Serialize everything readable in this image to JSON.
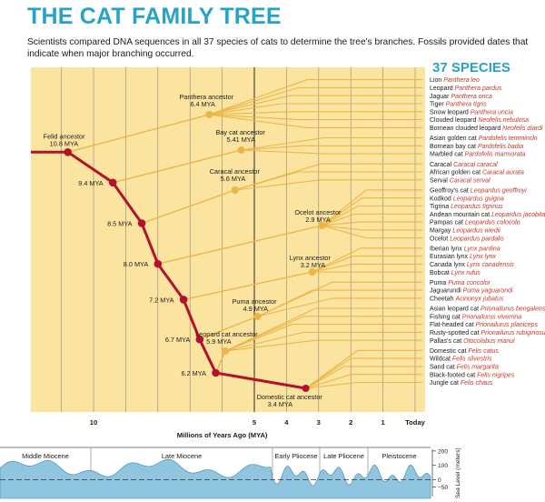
{
  "title": "THE CAT FAMILY TREE",
  "intro": "Scientists compared DNA sequences in all 37 species of cats to determine the tree's branches. Fossils provided dates that indicate when major branching occurred.",
  "species_header": "37 SPECIES",
  "colors": {
    "title": "#27a3c6",
    "panel": "#fbe4a0",
    "branch": "#eab646",
    "trunk": "#b2122b",
    "node": "#eab646",
    "latin": "#c0392b",
    "grid": "#6b6b6b",
    "sea_fill": "#8fc5de",
    "sea_dark": "#3a86ad"
  },
  "axis": {
    "label": "Millions of Years Ago (MYA)",
    "ticks": [
      {
        "mya": 10,
        "label": "10"
      },
      {
        "mya": 5,
        "label": "5"
      },
      {
        "mya": 4,
        "label": "4"
      },
      {
        "mya": 3,
        "label": "3"
      },
      {
        "mya": 2,
        "label": "2"
      },
      {
        "mya": 1,
        "label": "1"
      },
      {
        "mya": 0,
        "label": "Today"
      }
    ]
  },
  "nodes": [
    {
      "id": "felid",
      "label": "Felid ancestor",
      "mya_label": "10.8 MYA",
      "mya": 10.8,
      "kind": "trunk"
    },
    {
      "id": "t94",
      "mya_label": "9.4 MYA",
      "mya": 9.4,
      "kind": "trunk"
    },
    {
      "id": "t85",
      "mya_label": "8.5 MYA",
      "mya": 8.5,
      "kind": "trunk"
    },
    {
      "id": "t80",
      "mya_label": "8.0 MYA",
      "mya": 8.0,
      "kind": "trunk"
    },
    {
      "id": "t72",
      "mya_label": "7.2 MYA",
      "mya": 7.2,
      "kind": "trunk"
    },
    {
      "id": "t67",
      "mya_label": "6.7 MYA",
      "mya": 6.7,
      "kind": "trunk"
    },
    {
      "id": "t62",
      "mya_label": "6.2 MYA",
      "mya": 6.2,
      "kind": "trunk"
    },
    {
      "id": "panthera",
      "label": "Panthera ancestor",
      "mya_label": "6.4 MYA",
      "mya": 6.4,
      "kind": "clade"
    },
    {
      "id": "baycat",
      "label": "Bay cat ancestor",
      "mya_label": "5.41 MYA",
      "mya": 5.41,
      "kind": "clade"
    },
    {
      "id": "caracal",
      "label": "Caracal ancestor",
      "mya_label": "5.6 MYA",
      "mya": 5.6,
      "kind": "clade"
    },
    {
      "id": "ocelot",
      "label": "Ocelot ancestor",
      "mya_label": "2.9 MYA",
      "mya": 2.9,
      "kind": "clade"
    },
    {
      "id": "lynx",
      "label": "Lynx ancestor",
      "mya_label": "3.2 MYA",
      "mya": 3.2,
      "kind": "clade"
    },
    {
      "id": "puma",
      "label": "Puma ancestor",
      "mya_label": "4.9 MYA",
      "mya": 4.9,
      "kind": "clade"
    },
    {
      "id": "leopardcat",
      "label": "Leopard cat ancestor",
      "mya_label": "5.9 MYA",
      "mya": 5.9,
      "kind": "clade"
    },
    {
      "id": "domestic",
      "label": "Domestic cat ancestor",
      "mya_label": "3.4 MYA",
      "mya": 3.4,
      "kind": "clade"
    }
  ],
  "lineages": [
    {
      "node": "panthera",
      "species": [
        {
          "common": "Lion",
          "latin": "Panthera leo"
        },
        {
          "common": "Leopard",
          "latin": "Panthera pardus"
        },
        {
          "common": "Jaguar",
          "latin": "Panthera onca"
        },
        {
          "common": "Tiger",
          "latin": "Panthera tigris"
        },
        {
          "common": "Snow leopard",
          "latin": "Panthera uncia"
        },
        {
          "common": "Clouded leopard",
          "latin": "Neofelis nebulosa"
        },
        {
          "common": "Bornean clouded leopard",
          "latin": "Neofelis diardi"
        }
      ]
    },
    {
      "node": "baycat",
      "species": [
        {
          "common": "Asian golden cat",
          "latin": "Pardofelis temmincki"
        },
        {
          "common": "Bornean bay cat",
          "latin": "Pardofelis badia"
        },
        {
          "common": "Marbled cat",
          "latin": "Pardofelis marmorata"
        }
      ]
    },
    {
      "node": "caracal",
      "species": [
        {
          "common": "Caracal",
          "latin": "Caracal caracal"
        },
        {
          "common": "African golden cat",
          "latin": "Caracal aurata"
        },
        {
          "common": "Serval",
          "latin": "Caracal serval"
        }
      ]
    },
    {
      "node": "ocelot",
      "species": [
        {
          "common": "Geoffroy's cat",
          "latin": "Leopardus geoffroyi"
        },
        {
          "common": "Kodkod",
          "latin": "Leopardus guigna"
        },
        {
          "common": "Tigrina",
          "latin": "Leopardus tigrinus"
        },
        {
          "common": "Andean mountain cat",
          "latin": "Leopardus jacobita"
        },
        {
          "common": "Pampas cat",
          "latin": "Leopardus colocolo"
        },
        {
          "common": "Margay",
          "latin": "Leopardus wiedii"
        },
        {
          "common": "Ocelot",
          "latin": "Leopardus pardalis"
        }
      ]
    },
    {
      "node": "lynx",
      "species": [
        {
          "common": "Iberian lynx",
          "latin": "Lynx pardina"
        },
        {
          "common": "Eurasian lynx",
          "latin": "Lynx lynx"
        },
        {
          "common": "Canada lynx",
          "latin": "Lynx canadensis"
        },
        {
          "common": "Bobcat",
          "latin": "Lynx rufus"
        }
      ]
    },
    {
      "node": "puma",
      "species": [
        {
          "common": "Puma",
          "latin": "Puma concolor"
        },
        {
          "common": "Jaguarundi",
          "latin": "Puma yaguarondi"
        },
        {
          "common": "Cheetah",
          "latin": "Acinonyx jubatus"
        }
      ]
    },
    {
      "node": "leopardcat",
      "species": [
        {
          "common": "Asian leopard cat",
          "latin": "Prionailurus bengalensis"
        },
        {
          "common": "Fishing cat",
          "latin": "Prionailurus viverrina"
        },
        {
          "common": "Flat-headed cat",
          "latin": "Prionailurus planiceps"
        },
        {
          "common": "Rusty-spotted cat",
          "latin": "Prionailurus rubiginosus"
        },
        {
          "common": "Pallas's cat",
          "latin": "Otocolobus manul"
        }
      ]
    },
    {
      "node": "domestic",
      "species": [
        {
          "common": "Domestic cat",
          "latin": "Felis catus"
        },
        {
          "common": "Wildcat",
          "latin": "Felis silvestris"
        },
        {
          "common": "Sand cat",
          "latin": "Felis margarita"
        },
        {
          "common": "Black-footed cat",
          "latin": "Felis nigripes"
        },
        {
          "common": "Jungle cat",
          "latin": "Felis chaus"
        }
      ]
    }
  ],
  "epochs": [
    {
      "name": "Middle Miocene"
    },
    {
      "name": "Late Miocene"
    },
    {
      "name": "Early Pliocene"
    },
    {
      "name": "Late Pliocene"
    },
    {
      "name": "Pleistocene"
    }
  ],
  "sea_level": {
    "label": "Sea Level (meters)",
    "ticks": [
      {
        "value": 200,
        "label": "200"
      },
      {
        "value": 100,
        "label": "100"
      },
      {
        "value": 0,
        "label": "0"
      },
      {
        "value": -50,
        "label": "−50"
      }
    ]
  }
}
